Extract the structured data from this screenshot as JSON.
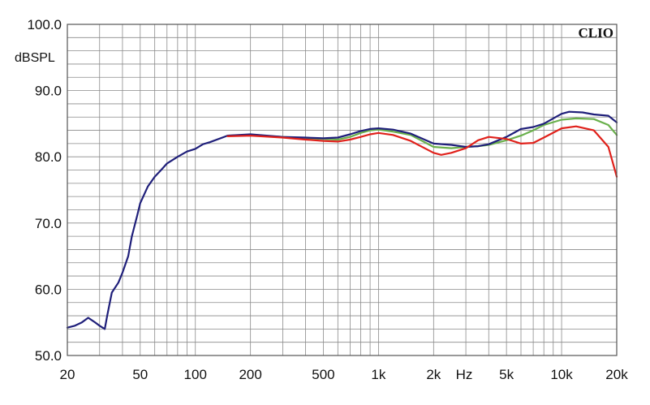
{
  "chart_data": {
    "type": "line",
    "brand": "CLIO",
    "ylabel": "dBSPL",
    "xunit": "Hz",
    "x_scale": "log",
    "xlim": [
      20,
      20000
    ],
    "ylim": [
      50,
      100
    ],
    "grid": true,
    "y_ticks": [
      {
        "value": 50,
        "label": "50.0"
      },
      {
        "value": 60,
        "label": "60.0"
      },
      {
        "value": 70,
        "label": "70.0"
      },
      {
        "value": 80,
        "label": "80.0"
      },
      {
        "value": 90,
        "label": "90.0"
      },
      {
        "value": 100,
        "label": "100.0"
      }
    ],
    "x_ticks": [
      {
        "value": 20,
        "label": "20"
      },
      {
        "value": 50,
        "label": "50"
      },
      {
        "value": 100,
        "label": "100"
      },
      {
        "value": 200,
        "label": "200"
      },
      {
        "value": 500,
        "label": "500"
      },
      {
        "value": 1000,
        "label": "1k"
      },
      {
        "value": 2000,
        "label": "2k"
      },
      {
        "value": 5000,
        "label": "5k"
      },
      {
        "value": 10000,
        "label": "10k"
      },
      {
        "value": 20000,
        "label": "20k"
      }
    ],
    "series": [
      {
        "color": "#6ab04c",
        "x": [
          150,
          200,
          300,
          400,
          500,
          600,
          700,
          800,
          900,
          1000,
          1200,
          1500,
          2000,
          2500,
          3000,
          3500,
          4000,
          5000,
          6000,
          7000,
          8000,
          10000,
          12000,
          15000,
          18000,
          20000
        ],
        "y": [
          83.2,
          83.3,
          83.0,
          82.8,
          82.7,
          82.6,
          83.0,
          83.6,
          84.0,
          84.1,
          83.8,
          83.3,
          81.5,
          81.3,
          81.5,
          81.6,
          81.8,
          82.5,
          83.2,
          84.0,
          84.8,
          85.6,
          85.8,
          85.7,
          84.8,
          83.3
        ]
      },
      {
        "color": "#1f1f7a",
        "x": [
          20,
          22,
          24,
          26,
          28,
          30,
          32,
          33,
          35,
          38,
          40,
          43,
          45,
          48,
          50,
          55,
          60,
          65,
          70,
          80,
          90,
          100,
          110,
          120,
          150,
          200,
          300,
          400,
          500,
          600,
          700,
          800,
          900,
          1000,
          1200,
          1500,
          2000,
          2500,
          3000,
          3500,
          4000,
          5000,
          6000,
          7000,
          8000,
          9000,
          10000,
          11000,
          13000,
          15000,
          18000,
          20000
        ],
        "y": [
          54.2,
          54.5,
          55.0,
          55.7,
          55.1,
          54.5,
          54.0,
          56.0,
          59.5,
          61.0,
          62.5,
          65.0,
          68.0,
          71.0,
          73.0,
          75.5,
          77.0,
          78.0,
          79.0,
          80.0,
          80.8,
          81.2,
          81.9,
          82.2,
          83.2,
          83.4,
          83.0,
          82.9,
          82.8,
          82.9,
          83.4,
          83.9,
          84.2,
          84.3,
          84.1,
          83.5,
          82.0,
          81.8,
          81.5,
          81.6,
          81.9,
          83.0,
          84.2,
          84.5,
          85.0,
          85.8,
          86.5,
          86.8,
          86.7,
          86.4,
          86.2,
          85.2
        ]
      },
      {
        "color": "#e0211b",
        "x": [
          150,
          200,
          300,
          400,
          500,
          600,
          700,
          800,
          900,
          1000,
          1200,
          1500,
          2000,
          2200,
          2500,
          3000,
          3500,
          4000,
          5000,
          6000,
          7000,
          8000,
          10000,
          12000,
          15000,
          18000,
          20000
        ],
        "y": [
          83.1,
          83.2,
          82.9,
          82.6,
          82.4,
          82.3,
          82.6,
          83.0,
          83.4,
          83.6,
          83.3,
          82.4,
          80.6,
          80.3,
          80.6,
          81.3,
          82.5,
          83.0,
          82.7,
          82.0,
          82.1,
          82.9,
          84.3,
          84.6,
          84.0,
          81.5,
          77.0
        ]
      }
    ]
  }
}
